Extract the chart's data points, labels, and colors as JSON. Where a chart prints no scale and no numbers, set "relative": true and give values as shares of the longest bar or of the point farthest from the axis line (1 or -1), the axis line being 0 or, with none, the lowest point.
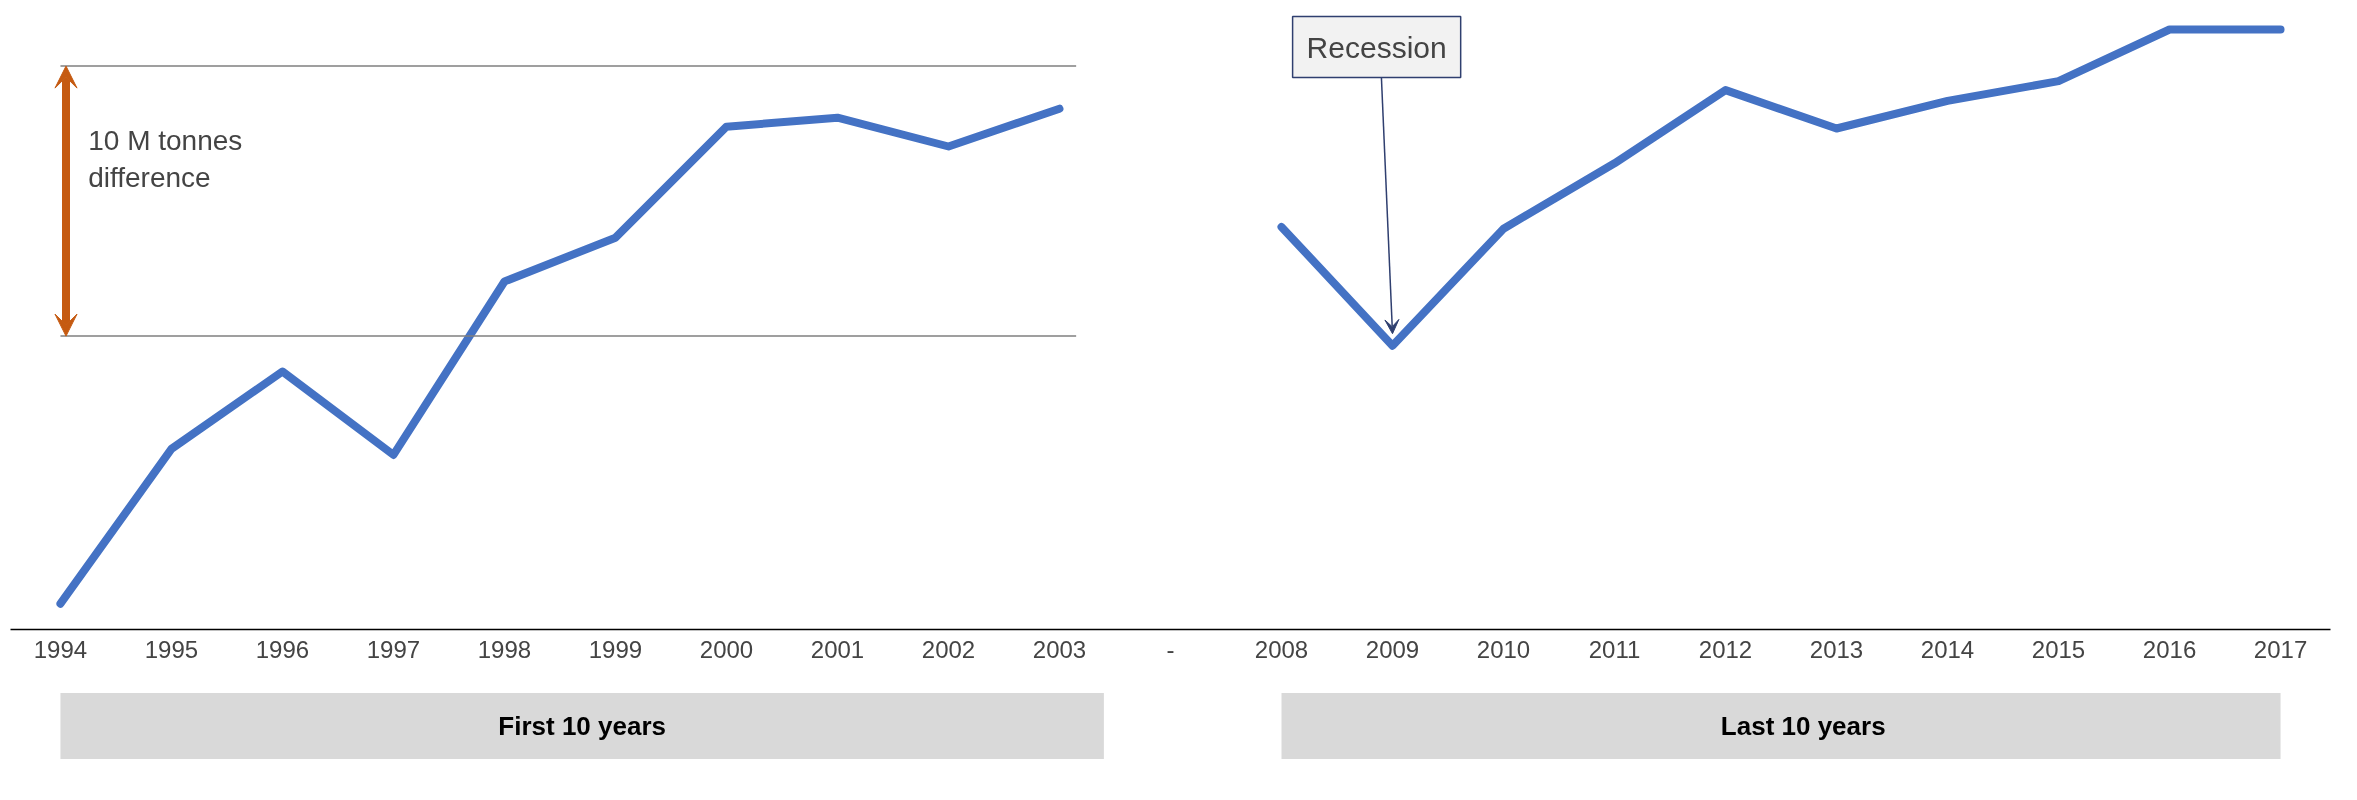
{
  "chart_data": {
    "type": "line",
    "relative": true,
    "categories": [
      "1994",
      "1995",
      "1996",
      "1997",
      "1998",
      "1999",
      "2000",
      "2001",
      "2002",
      "2003",
      "-",
      "2008",
      "2009",
      "2010",
      "2011",
      "2012",
      "2013",
      "2014",
      "2015",
      "2016",
      "2017"
    ],
    "series": [
      {
        "color": "#4472c4",
        "values": [
          0.043,
          0.301,
          0.43,
          0.291,
          0.58,
          0.653,
          0.838,
          0.853,
          0.805,
          0.868,
          null,
          0.671,
          0.473,
          0.668,
          0.777,
          0.899,
          0.835,
          0.881,
          0.914,
          1,
          1
        ]
      }
    ],
    "ref_lines": [
      {
        "axis": "y",
        "value": 0.939,
        "color": "#7f7f7f"
      },
      {
        "axis": "y",
        "value": 0.489,
        "color": "#7f7f7f"
      }
    ],
    "annotations": [
      "10 M tonnes difference",
      "Recession",
      "First 10 years",
      "Last 10 years"
    ],
    "grid": false,
    "marker": "none",
    "line_style": "solid"
  }
}
